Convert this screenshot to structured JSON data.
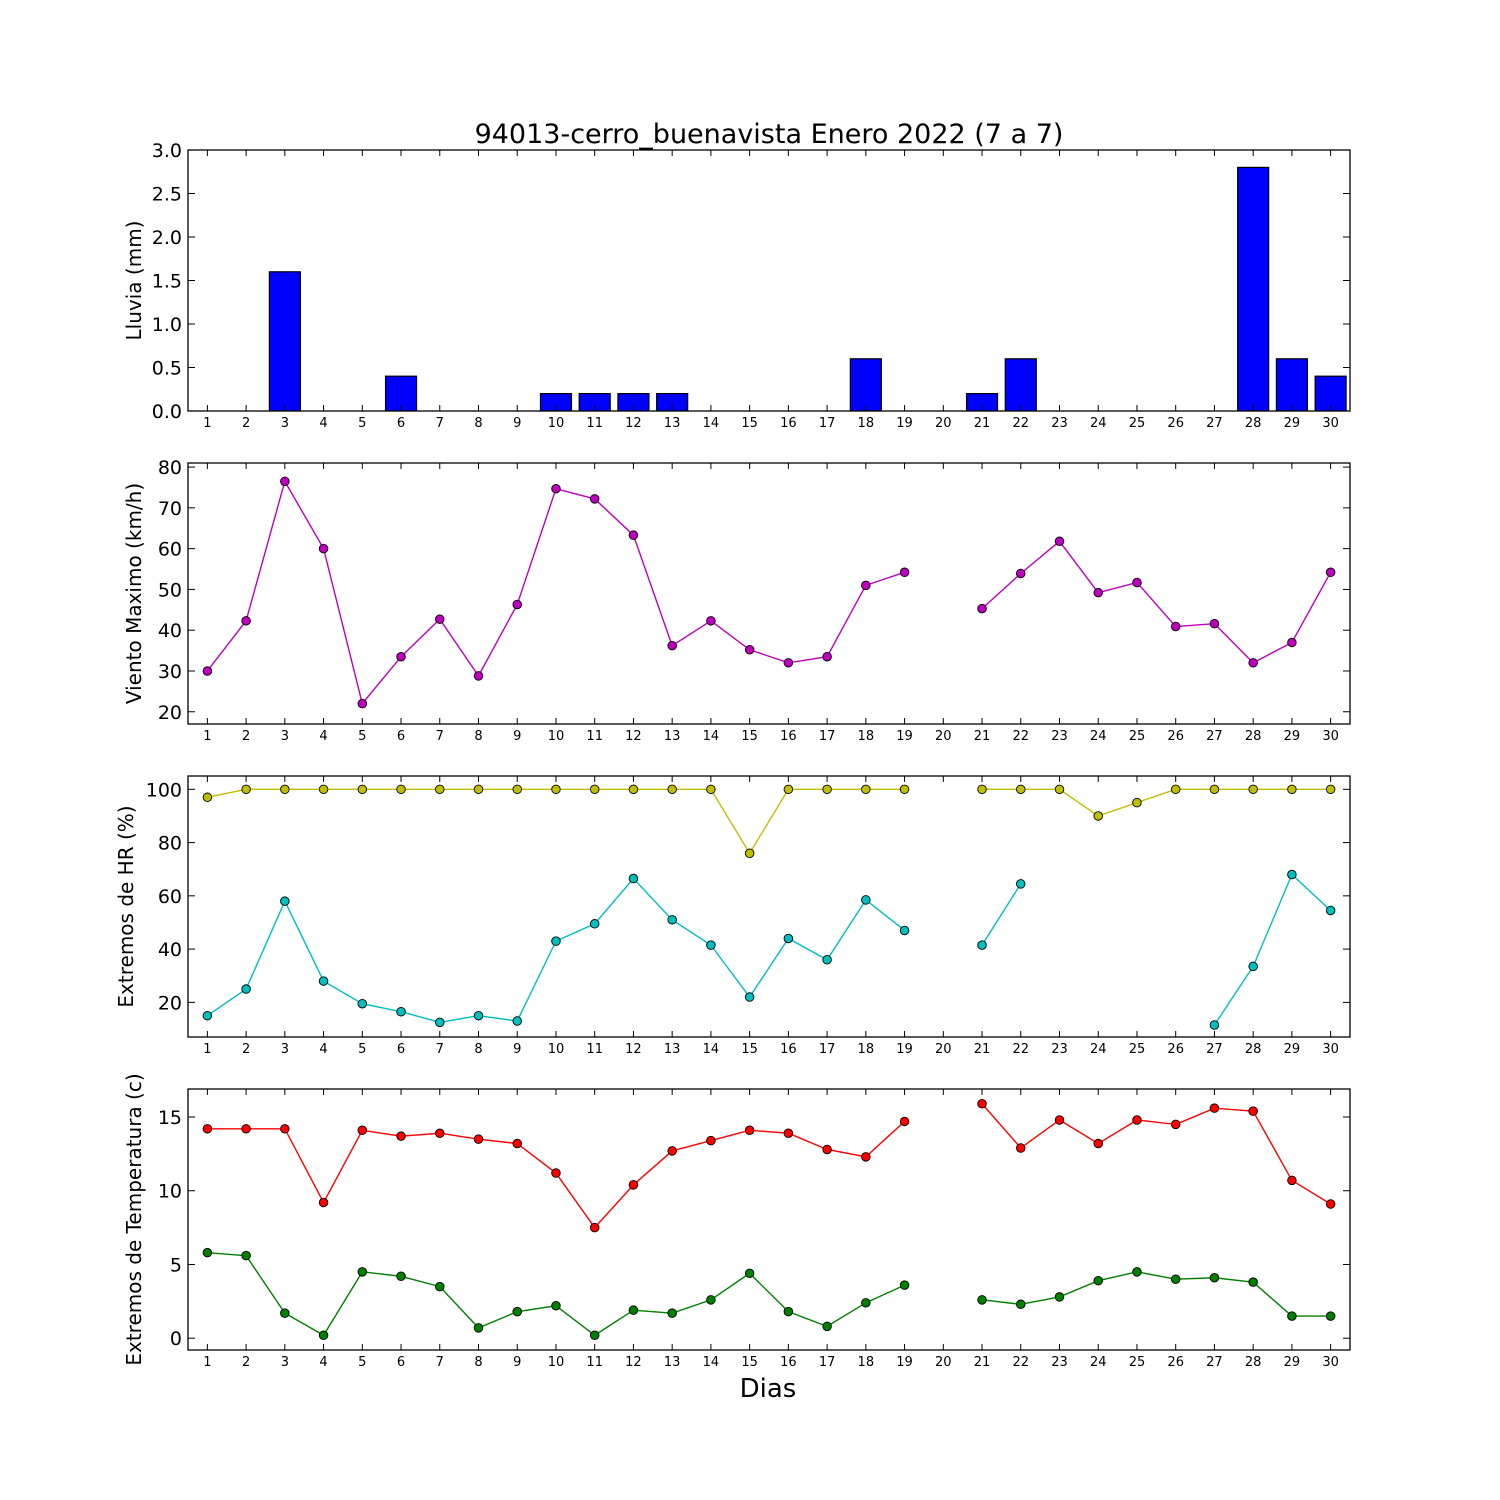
{
  "title": "94013-cerro_buenavista Enero 2022  (7 a 7)",
  "xlabel": "Dias",
  "days": [
    1,
    2,
    3,
    4,
    5,
    6,
    7,
    8,
    9,
    10,
    11,
    12,
    13,
    14,
    15,
    16,
    17,
    18,
    19,
    20,
    21,
    22,
    23,
    24,
    25,
    26,
    27,
    28,
    29,
    30
  ],
  "chart_data": [
    {
      "type": "bar",
      "ylabel": "Lluvia (mm)",
      "ylim": [
        0,
        3.0
      ],
      "yticks": [
        "0.0",
        "0.5",
        "1.0",
        "1.5",
        "2.0",
        "2.5",
        "3.0"
      ],
      "ytick_values": [
        0,
        0.5,
        1.0,
        1.5,
        2.0,
        2.5,
        3.0
      ],
      "grid": false,
      "series": [
        {
          "color": "#0000ff",
          "values": [
            0,
            0,
            1.6,
            0,
            0,
            0.4,
            0,
            0,
            0,
            0.2,
            0.2,
            0.2,
            0.2,
            0,
            0,
            0,
            0,
            0.6,
            0,
            0,
            0.2,
            0.6,
            0,
            0,
            0,
            0,
            0,
            2.8,
            0.6,
            0.4
          ]
        }
      ]
    },
    {
      "type": "line",
      "ylabel": "Viento Maximo (km/h)",
      "ylim": [
        17,
        81
      ],
      "yticks": [
        "20",
        "30",
        "40",
        "50",
        "60",
        "70",
        "80"
      ],
      "ytick_values": [
        20,
        30,
        40,
        50,
        60,
        70,
        80
      ],
      "grid": false,
      "series": [
        {
          "color": "#bf00bf",
          "values": [
            30,
            42.3,
            76.5,
            60,
            22,
            33.5,
            42.7,
            28.8,
            46.3,
            74.7,
            72.2,
            63.3,
            36.2,
            42.3,
            35.2,
            32,
            33.5,
            51,
            54.2,
            null,
            45.3,
            53.9,
            61.8,
            49.2,
            51.7,
            40.9,
            41.6,
            32,
            37,
            54.2
          ]
        }
      ]
    },
    {
      "type": "line",
      "ylabel": "Extremos de HR (%)",
      "ylim": [
        7,
        105
      ],
      "yticks": [
        "20",
        "40",
        "60",
        "80",
        "100"
      ],
      "ytick_values": [
        20,
        40,
        60,
        80,
        100
      ],
      "grid": false,
      "series": [
        {
          "color": "#bfbf00",
          "values": [
            97,
            100,
            100,
            100,
            100,
            100,
            100,
            100,
            100,
            100,
            100,
            100,
            100,
            100,
            76,
            100,
            100,
            100,
            100,
            null,
            100,
            100,
            100,
            90,
            95,
            100,
            100,
            100,
            100,
            100
          ]
        },
        {
          "color": "#00bfbf",
          "values": [
            15,
            25,
            58,
            28,
            19.5,
            16.5,
            12.5,
            15,
            13,
            43,
            49.5,
            66.5,
            51,
            41.5,
            22,
            44,
            36,
            58.5,
            47,
            null,
            41.5,
            64.5,
            null,
            null,
            null,
            null,
            11.5,
            33.5,
            68,
            54.5
          ]
        }
      ]
    },
    {
      "type": "line",
      "ylabel": "Extremos de Temperatura (c)",
      "ylim": [
        -0.8,
        16.9
      ],
      "yticks": [
        "0",
        "5",
        "10",
        "15"
      ],
      "ytick_values": [
        0,
        5,
        10,
        15
      ],
      "grid": false,
      "series": [
        {
          "color": "#ff0000",
          "values": [
            14.2,
            14.2,
            14.2,
            9.2,
            14.1,
            13.7,
            13.9,
            13.5,
            13.2,
            11.2,
            7.5,
            10.4,
            12.7,
            13.4,
            14.1,
            13.9,
            12.8,
            12.3,
            14.7,
            null,
            15.9,
            12.9,
            14.8,
            13.2,
            14.8,
            14.5,
            15.6,
            15.4,
            10.7,
            9.1
          ]
        },
        {
          "color": "#008000",
          "values": [
            5.8,
            5.6,
            1.7,
            0.2,
            4.5,
            4.2,
            3.5,
            0.7,
            1.8,
            2.2,
            0.2,
            1.9,
            1.7,
            2.6,
            4.4,
            1.8,
            0.8,
            2.4,
            3.6,
            null,
            2.6,
            2.3,
            2.8,
            3.9,
            4.5,
            4.0,
            4.1,
            3.8,
            1.5,
            1.5
          ]
        }
      ]
    }
  ]
}
